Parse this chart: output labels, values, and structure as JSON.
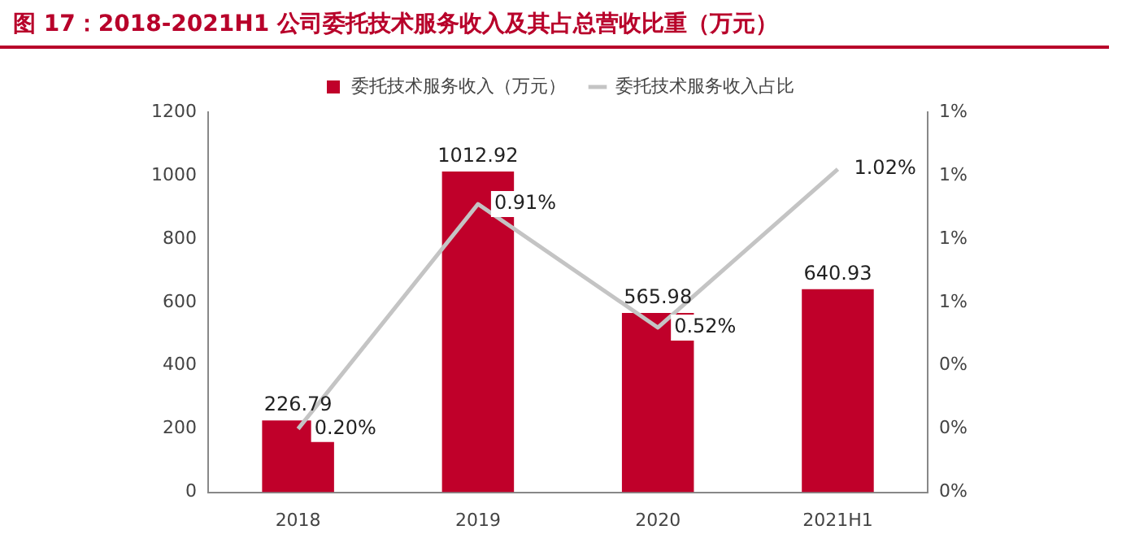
{
  "chart_data": {
    "type": "bar",
    "title": "图 17：2018-2021H1 公司委托技术服务收入及其占总营收比重（万元）",
    "categories": [
      "2018",
      "2019",
      "2020",
      "2021H1"
    ],
    "series": [
      {
        "name": "委托技术服务收入（万元）",
        "color": "#c0002a",
        "values": [
          226.79,
          1012.92,
          565.98,
          640.93
        ],
        "value_labels": [
          "226.79",
          "1012.92",
          "565.98",
          "640.93"
        ]
      },
      {
        "name": "委托技术服务收入占比",
        "type": "line",
        "axis": "y2",
        "color": "#c4c4c4",
        "values": [
          0.2,
          0.91,
          0.52,
          1.02
        ],
        "value_labels": [
          "0.20%",
          "0.91%",
          "0.52%",
          "1.02%"
        ]
      }
    ],
    "ylim": [
      0,
      1200
    ],
    "yticks": [
      0,
      200,
      400,
      600,
      800,
      1000,
      1200
    ],
    "y2lim": [
      0,
      1.2
    ],
    "y2ticks": [
      {
        "value": 0,
        "label": "0%"
      },
      {
        "value": 0.2,
        "label": "0%"
      },
      {
        "value": 0.4,
        "label": "0%"
      },
      {
        "value": 0.6,
        "label": "1%"
      },
      {
        "value": 0.8,
        "label": "1%"
      },
      {
        "value": 1.0,
        "label": "1%"
      },
      {
        "value": 1.2,
        "label": "1%"
      }
    ],
    "grid": false,
    "legend": "top",
    "marker": "none",
    "line_style": "solid"
  }
}
